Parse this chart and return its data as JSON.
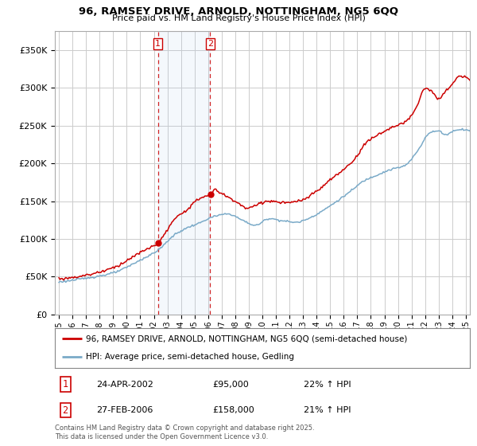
{
  "title1": "96, RAMSEY DRIVE, ARNOLD, NOTTINGHAM, NG5 6QQ",
  "title2": "Price paid vs. HM Land Registry's House Price Index (HPI)",
  "background_color": "#ffffff",
  "plot_bg_color": "#ffffff",
  "grid_color": "#cccccc",
  "red_color": "#cc0000",
  "blue_color": "#7aaac8",
  "purchase1_year": 2002.31,
  "purchase1_price": 95000,
  "purchase1_date": "24-APR-2002",
  "purchase1_hpi_pct": "22%",
  "purchase2_year": 2006.16,
  "purchase2_price": 158000,
  "purchase2_date": "27-FEB-2006",
  "purchase2_hpi_pct": "21%",
  "legend_line1": "96, RAMSEY DRIVE, ARNOLD, NOTTINGHAM, NG5 6QQ (semi-detached house)",
  "legend_line2": "HPI: Average price, semi-detached house, Gedling",
  "footnote": "Contains HM Land Registry data © Crown copyright and database right 2025.\nThis data is licensed under the Open Government Licence v3.0.",
  "ylim": [
    0,
    375000
  ],
  "yticks": [
    0,
    50000,
    100000,
    150000,
    200000,
    250000,
    300000,
    350000
  ],
  "xlim_start": 1994.7,
  "xlim_end": 2025.3
}
